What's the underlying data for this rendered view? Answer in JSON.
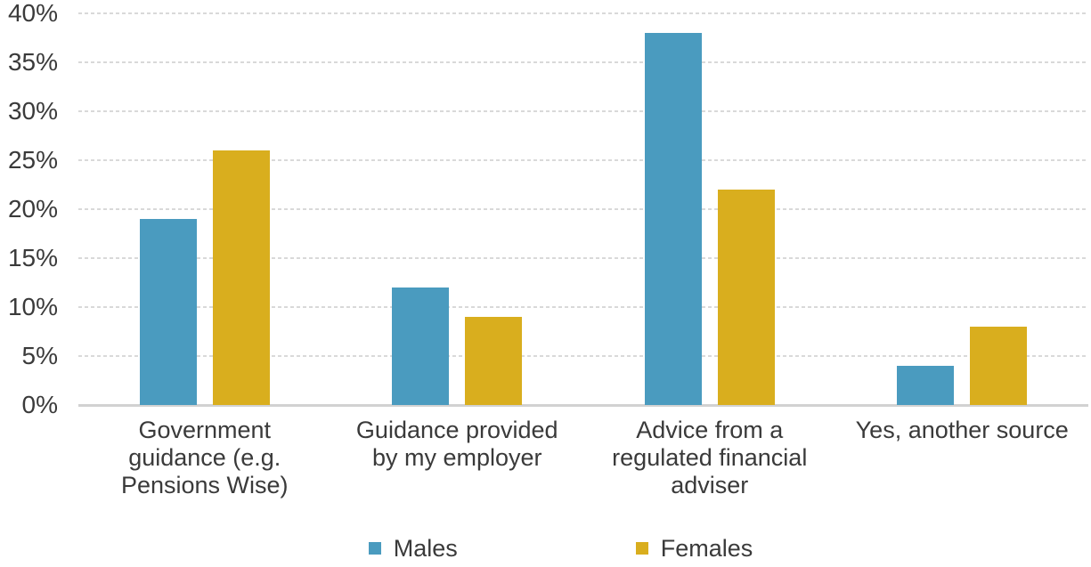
{
  "chart_data": {
    "type": "bar",
    "title": "",
    "xlabel": "",
    "ylabel": "",
    "categories": [
      "Government guidance (e.g. Pensions Wise)",
      "Guidance provided by my employer",
      "Advice from a regulated financial adviser",
      "Yes, another source"
    ],
    "series": [
      {
        "name": "Males",
        "color": "#4A9BBF",
        "values": [
          19,
          12,
          38,
          4
        ]
      },
      {
        "name": "Females",
        "color": "#D9AE1E",
        "values": [
          26,
          9,
          22,
          8
        ]
      }
    ],
    "ylim": [
      0,
      40
    ],
    "ytick_step": 5,
    "ytick_suffix": "%",
    "grid": "horizontal-dashed",
    "legend_position": "bottom-center"
  },
  "styles": {
    "text_color": "#3a3a3a",
    "gridline_color": "#d9d9d9",
    "baseline_color": "#d2d2d2",
    "background": "#ffffff"
  }
}
